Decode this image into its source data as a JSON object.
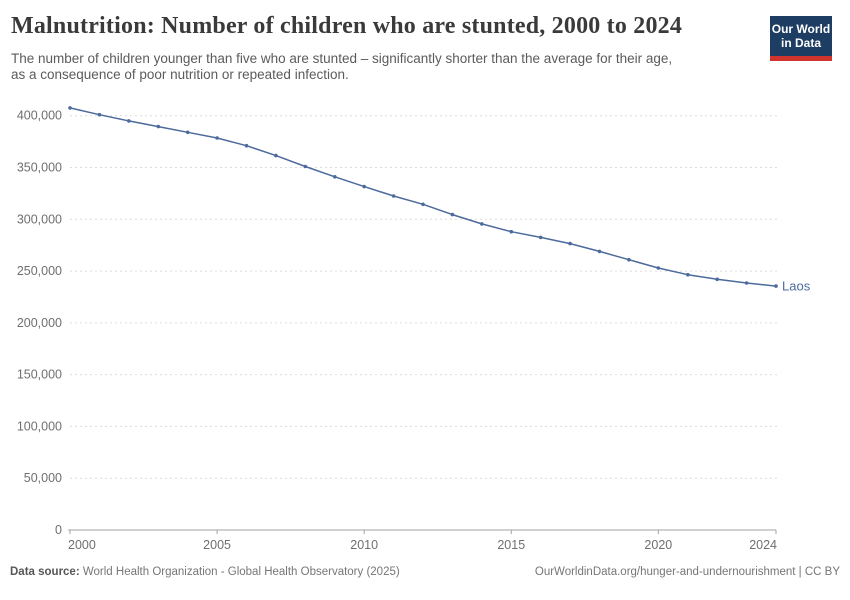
{
  "header": {
    "title": "Malnutrition: Number of children who are stunted, 2000 to 2024",
    "subtitle_lines": [
      "The number of children younger than five who are stunted – significantly shorter than the average for their age,",
      "as a consequence of poor nutrition or repeated infection."
    ],
    "logo": {
      "line1": "Our World",
      "line2": "in Data",
      "bg_color": "#1d3d63",
      "accent_color": "#d0342c"
    }
  },
  "chart_data": {
    "type": "line",
    "title": "Malnutrition: Number of children who are stunted, 2000 to 2024",
    "x": [
      2000,
      2001,
      2002,
      2003,
      2004,
      2005,
      2006,
      2007,
      2008,
      2009,
      2010,
      2011,
      2012,
      2013,
      2014,
      2015,
      2016,
      2017,
      2018,
      2019,
      2020,
      2021,
      2022,
      2023,
      2024
    ],
    "series": [
      {
        "name": "Laos",
        "color": "#4C6A9C",
        "values": [
          407500,
          401000,
          395000,
          389500,
          384000,
          378500,
          371000,
          361500,
          351000,
          341000,
          331500,
          322500,
          314500,
          304500,
          295500,
          288000,
          282500,
          276500,
          269000,
          261000,
          253000,
          246500,
          242000,
          238500,
          235500
        ]
      }
    ],
    "x_ticks": [
      2000,
      2005,
      2010,
      2015,
      2020,
      2024
    ],
    "y_ticks": [
      0,
      50000,
      100000,
      150000,
      200000,
      250000,
      300000,
      350000,
      400000
    ],
    "ylim": [
      0,
      400000
    ],
    "grid": "dashed-horizontal",
    "legend_position": "end-of-line-label",
    "axis_color": "#a3a3a3",
    "grid_color": "#dcdcdc",
    "tick_label_color": "#6f6f6f"
  },
  "footer": {
    "datasource_label": "Data source:",
    "datasource_text": "World Health Organization - Global Health Observatory (2025)",
    "link_text": "OurWorldinData.org/hunger-and-undernourishment | CC BY"
  }
}
